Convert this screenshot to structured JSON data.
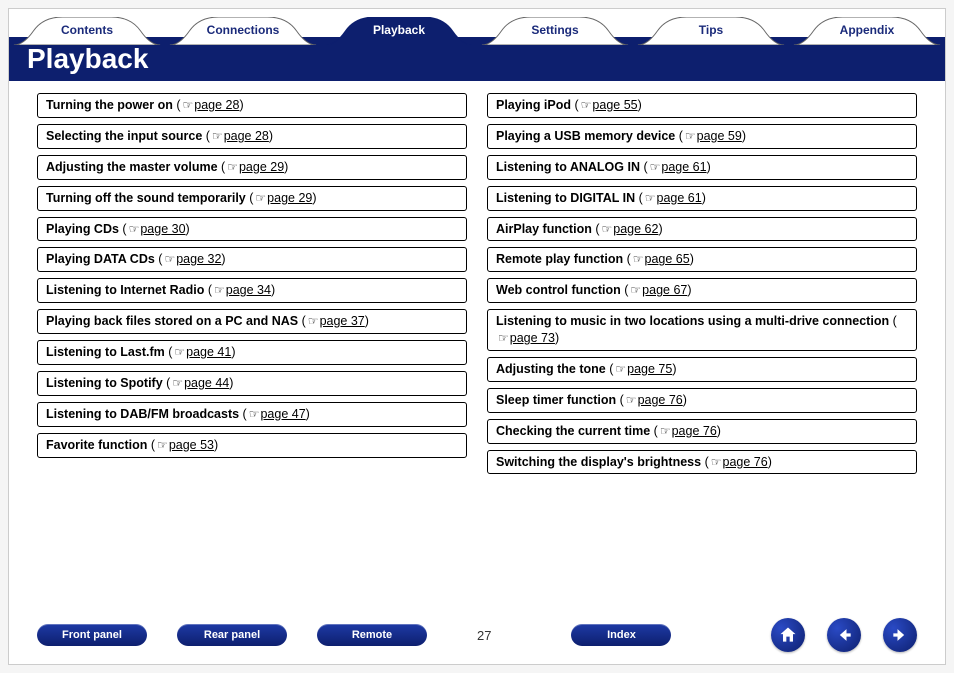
{
  "colors": {
    "brand_fill": "#0d1f6e",
    "tab_inactive_text": "#1a2a7a",
    "tab_active_text": "#ffffff",
    "border": "#000000",
    "page_bg": "#ffffff"
  },
  "tabs": [
    {
      "label": "Contents",
      "active": false
    },
    {
      "label": "Connections",
      "active": false
    },
    {
      "label": "Playback",
      "active": true
    },
    {
      "label": "Settings",
      "active": false
    },
    {
      "label": "Tips",
      "active": false
    },
    {
      "label": "Appendix",
      "active": false
    }
  ],
  "title": "Playback",
  "left_entries": [
    {
      "topic": "Turning the power on",
      "page_label": "page 28"
    },
    {
      "topic": "Selecting the input source",
      "page_label": "page 28"
    },
    {
      "topic": "Adjusting the master volume",
      "page_label": "page 29"
    },
    {
      "topic": "Turning off the sound temporarily",
      "page_label": "page 29"
    },
    {
      "topic": "Playing CDs",
      "page_label": "page 30"
    },
    {
      "topic": "Playing DATA CDs",
      "page_label": "page 32"
    },
    {
      "topic": "Listening to Internet Radio",
      "page_label": "page 34"
    },
    {
      "topic": "Playing back files stored on a PC and NAS",
      "page_label": "page 37"
    },
    {
      "topic": "Listening to Last.fm",
      "page_label": "page 41"
    },
    {
      "topic": "Listening to Spotify",
      "page_label": "page 44"
    },
    {
      "topic": "Listening to DAB/FM broadcasts",
      "page_label": "page 47"
    },
    {
      "topic": "Favorite function",
      "page_label": "page 53"
    }
  ],
  "right_entries": [
    {
      "topic": "Playing iPod",
      "page_label": "page 55"
    },
    {
      "topic": "Playing a USB memory device",
      "page_label": "page 59"
    },
    {
      "topic": "Listening to ANALOG IN",
      "page_label": "page 61"
    },
    {
      "topic": "Listening to DIGITAL IN",
      "page_label": "page 61"
    },
    {
      "topic": "AirPlay function",
      "page_label": "page 62"
    },
    {
      "topic": "Remote play function",
      "page_label": "page 65"
    },
    {
      "topic": "Web control function",
      "page_label": "page 67"
    },
    {
      "topic": "Listening to music in two locations using a multi-drive connection",
      "page_label": "page 73"
    },
    {
      "topic": "Adjusting the tone",
      "page_label": "page 75"
    },
    {
      "topic": "Sleep timer function",
      "page_label": "page 76"
    },
    {
      "topic": "Checking the current time",
      "page_label": "page 76"
    },
    {
      "topic": "Switching the display's brightness",
      "page_label": "page 76"
    }
  ],
  "footer": {
    "buttons": [
      "Front panel",
      "Rear panel",
      "Remote"
    ],
    "index_button": "Index",
    "page_number": "27"
  }
}
